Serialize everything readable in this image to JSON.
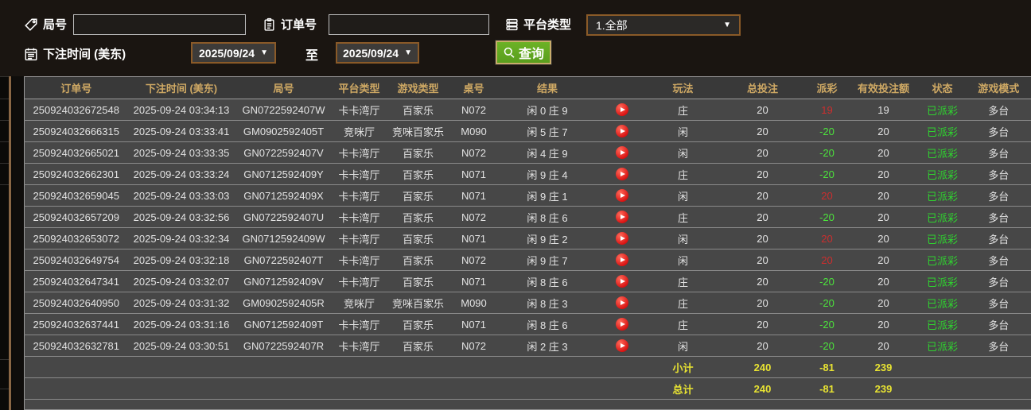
{
  "filters": {
    "round_label": "局号",
    "round_value": "",
    "order_label": "订单号",
    "order_value": "",
    "platform_label": "平台类型",
    "platform_value": "1.全部",
    "bet_time_label": "下注时间 (美东)",
    "to_label": "至",
    "date_from": "2025/09/24",
    "date_to": "2025/09/24",
    "search_label": "查询"
  },
  "table": {
    "columns": [
      "订单号",
      "下注时间 (美东)",
      "局号",
      "平台类型",
      "游戏类型",
      "桌号",
      "结果",
      "",
      "玩法",
      "总投注",
      "派彩",
      "有效投注额",
      "状态",
      "游戏模式"
    ],
    "rows": [
      {
        "order": "250924032672548",
        "time": "2025-09-24 03:34:13",
        "round": "GN0722592407W",
        "platform": "卡卡湾厅",
        "game": "百家乐",
        "table_no": "N072",
        "result": "闲 0 庄 9",
        "bet_side": "庄",
        "total_bet": "20",
        "payout": "19",
        "valid_bet": "19",
        "status": "已派彩",
        "mode": "多台"
      },
      {
        "order": "250924032666315",
        "time": "2025-09-24 03:33:41",
        "round": "GM0902592405T",
        "platform": "竞咪厅",
        "game": "竞咪百家乐",
        "table_no": "M090",
        "result": "闲 5 庄 7",
        "bet_side": "闲",
        "total_bet": "20",
        "payout": "-20",
        "valid_bet": "20",
        "status": "已派彩",
        "mode": "多台"
      },
      {
        "order": "250924032665021",
        "time": "2025-09-24 03:33:35",
        "round": "GN0722592407V",
        "platform": "卡卡湾厅",
        "game": "百家乐",
        "table_no": "N072",
        "result": "闲 4 庄 9",
        "bet_side": "闲",
        "total_bet": "20",
        "payout": "-20",
        "valid_bet": "20",
        "status": "已派彩",
        "mode": "多台"
      },
      {
        "order": "250924032662301",
        "time": "2025-09-24 03:33:24",
        "round": "GN0712592409Y",
        "platform": "卡卡湾厅",
        "game": "百家乐",
        "table_no": "N071",
        "result": "闲 9 庄 4",
        "bet_side": "庄",
        "total_bet": "20",
        "payout": "-20",
        "valid_bet": "20",
        "status": "已派彩",
        "mode": "多台"
      },
      {
        "order": "250924032659045",
        "time": "2025-09-24 03:33:03",
        "round": "GN0712592409X",
        "platform": "卡卡湾厅",
        "game": "百家乐",
        "table_no": "N071",
        "result": "闲 9 庄 1",
        "bet_side": "闲",
        "total_bet": "20",
        "payout": "20",
        "valid_bet": "20",
        "status": "已派彩",
        "mode": "多台"
      },
      {
        "order": "250924032657209",
        "time": "2025-09-24 03:32:56",
        "round": "GN0722592407U",
        "platform": "卡卡湾厅",
        "game": "百家乐",
        "table_no": "N072",
        "result": "闲 8 庄 6",
        "bet_side": "庄",
        "total_bet": "20",
        "payout": "-20",
        "valid_bet": "20",
        "status": "已派彩",
        "mode": "多台"
      },
      {
        "order": "250924032653072",
        "time": "2025-09-24 03:32:34",
        "round": "GN0712592409W",
        "platform": "卡卡湾厅",
        "game": "百家乐",
        "table_no": "N071",
        "result": "闲 9 庄 2",
        "bet_side": "闲",
        "total_bet": "20",
        "payout": "20",
        "valid_bet": "20",
        "status": "已派彩",
        "mode": "多台"
      },
      {
        "order": "250924032649754",
        "time": "2025-09-24 03:32:18",
        "round": "GN0722592407T",
        "platform": "卡卡湾厅",
        "game": "百家乐",
        "table_no": "N072",
        "result": "闲 9 庄 7",
        "bet_side": "闲",
        "total_bet": "20",
        "payout": "20",
        "valid_bet": "20",
        "status": "已派彩",
        "mode": "多台"
      },
      {
        "order": "250924032647341",
        "time": "2025-09-24 03:32:07",
        "round": "GN0712592409V",
        "platform": "卡卡湾厅",
        "game": "百家乐",
        "table_no": "N071",
        "result": "闲 8 庄 6",
        "bet_side": "庄",
        "total_bet": "20",
        "payout": "-20",
        "valid_bet": "20",
        "status": "已派彩",
        "mode": "多台"
      },
      {
        "order": "250924032640950",
        "time": "2025-09-24 03:31:32",
        "round": "GM0902592405R",
        "platform": "竞咪厅",
        "game": "竞咪百家乐",
        "table_no": "M090",
        "result": "闲 8 庄 3",
        "bet_side": "庄",
        "total_bet": "20",
        "payout": "-20",
        "valid_bet": "20",
        "status": "已派彩",
        "mode": "多台"
      },
      {
        "order": "250924032637441",
        "time": "2025-09-24 03:31:16",
        "round": "GN0712592409T",
        "platform": "卡卡湾厅",
        "game": "百家乐",
        "table_no": "N071",
        "result": "闲 8 庄 6",
        "bet_side": "庄",
        "total_bet": "20",
        "payout": "-20",
        "valid_bet": "20",
        "status": "已派彩",
        "mode": "多台"
      },
      {
        "order": "250924032632781",
        "time": "2025-09-24 03:30:51",
        "round": "GN0722592407R",
        "platform": "卡卡湾厅",
        "game": "百家乐",
        "table_no": "N072",
        "result": "闲 2 庄 3",
        "bet_side": "闲",
        "total_bet": "20",
        "payout": "-20",
        "valid_bet": "20",
        "status": "已派彩",
        "mode": "多台"
      }
    ],
    "subtotal": {
      "label": "小计",
      "total_bet": "240",
      "payout": "-81",
      "valid_bet": "239"
    },
    "total": {
      "label": "总计",
      "total_bet": "240",
      "payout": "-81",
      "valid_bet": "239"
    }
  },
  "colors": {
    "header_text": "#cfa964",
    "payout_positive": "#cc2e2e",
    "payout_negative": "#4ce43c",
    "status_paid": "#2fd32f",
    "totals_text": "#e8e332",
    "search_button": "#5a9e1e"
  }
}
